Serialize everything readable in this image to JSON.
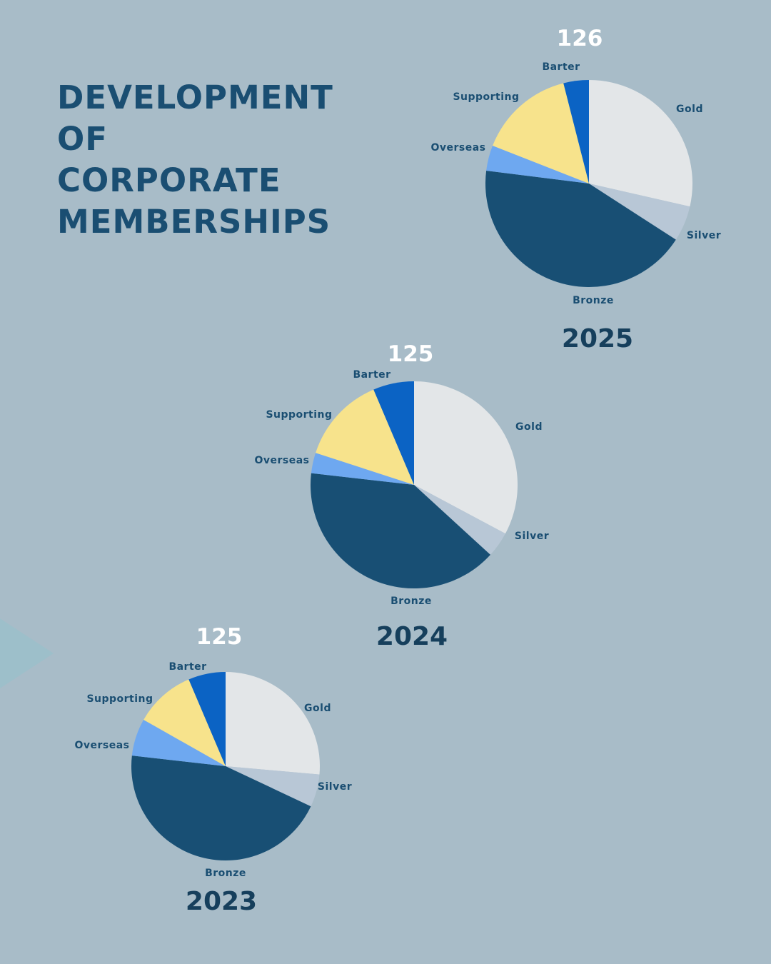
{
  "title_lines": [
    "DEVELOPMENT",
    "OF",
    "CORPORATE",
    "MEMBERSHIPS"
  ],
  "colors": {
    "background": "#a8bcc8",
    "title": "#1a4e72",
    "Gold": "#e3e6e8",
    "Silver": "#b8c7d6",
    "Bronze": "#184f74",
    "Overseas": "#6ea8f0",
    "Supporting": "#f7e38c",
    "Barter": "#0b63c4"
  },
  "chart_data": [
    {
      "type": "pie",
      "year": "2025",
      "total_label": "126",
      "categories": [
        "Gold",
        "Silver",
        "Bronze",
        "Overseas",
        "Supporting",
        "Barter"
      ],
      "values": [
        36,
        7,
        54,
        5,
        19,
        5
      ]
    },
    {
      "type": "pie",
      "year": "2024",
      "total_label": "125",
      "categories": [
        "Gold",
        "Silver",
        "Bronze",
        "Overseas",
        "Supporting",
        "Barter"
      ],
      "values": [
        41,
        5,
        50,
        4,
        17,
        8
      ]
    },
    {
      "type": "pie",
      "year": "2023",
      "total_label": "125",
      "categories": [
        "Gold",
        "Silver",
        "Bronze",
        "Overseas",
        "Supporting",
        "Barter"
      ],
      "values": [
        33,
        7,
        56,
        8,
        13,
        8
      ]
    }
  ]
}
